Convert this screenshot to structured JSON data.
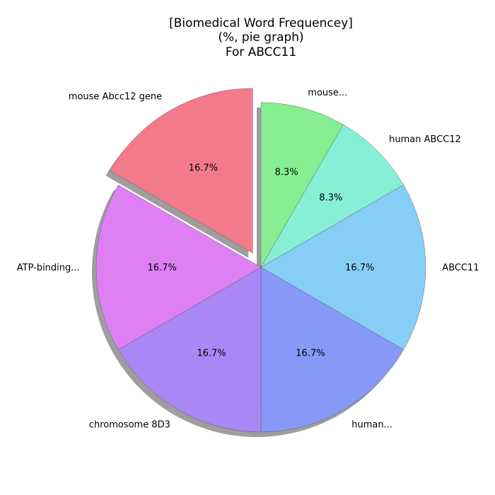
{
  "chart_data": {
    "type": "pie",
    "title_lines": [
      "[Biomedical Word Frequencey]",
      "(%, pie graph)",
      "For ABCC11"
    ],
    "slices": [
      {
        "label": "mouse...",
        "value": 8.33,
        "pct_label": "8.3%",
        "color": "#87EF92",
        "explode": false
      },
      {
        "label": "human ABCC12",
        "value": 8.33,
        "pct_label": "8.3%",
        "color": "#87EFD6",
        "explode": false
      },
      {
        "label": "ABCC11",
        "value": 16.67,
        "pct_label": "16.7%",
        "color": "#87CEF7",
        "explode": false
      },
      {
        "label": "human...",
        "value": 16.67,
        "pct_label": "16.7%",
        "color": "#8799F7",
        "explode": false
      },
      {
        "label": "chromosome 8D3",
        "value": 16.67,
        "pct_label": "16.7%",
        "color": "#A987F4",
        "explode": false
      },
      {
        "label": "ATP-binding...",
        "value": 16.67,
        "pct_label": "16.7%",
        "color": "#DE80F4",
        "explode": false
      },
      {
        "label": "mouse Abcc12 gene",
        "value": 16.67,
        "pct_label": "16.7%",
        "color": "#F27A8A",
        "explode": true
      }
    ],
    "start_angle_deg": 90,
    "direction": "clockwise",
    "shadow": true,
    "legend": "none"
  }
}
